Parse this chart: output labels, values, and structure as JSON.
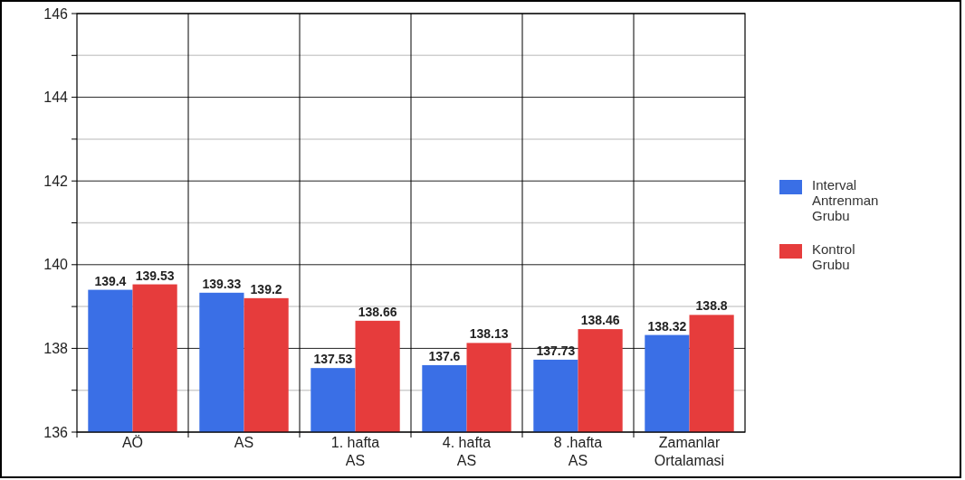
{
  "chart_data": {
    "type": "bar",
    "categories": [
      "AÖ",
      "AS",
      "1. hafta AS",
      "4. hafta AS",
      "8 .hafta AS",
      "Zamanlar Ortalamasi"
    ],
    "series": [
      {
        "name": "Interval Antrenman Grubu",
        "color": "#3a6fe6",
        "values": [
          139.4,
          139.33,
          137.53,
          137.6,
          137.73,
          138.32
        ],
        "value_labels": [
          "139.4",
          "139.33",
          "137.53",
          "137.6",
          "137.73",
          "138.32"
        ]
      },
      {
        "name": "Kontrol Grubu",
        "color": "#e63c3c",
        "values": [
          139.53,
          139.2,
          138.66,
          138.13,
          138.46,
          138.8
        ],
        "value_labels": [
          "139.53",
          "139.2",
          "138.66",
          "138.13",
          "138.46",
          "138.8"
        ]
      }
    ],
    "ylim": [
      136,
      146
    ],
    "yticks": [
      136,
      {
        "value": 137,
        "label": null
      },
      138,
      {
        "value": 139,
        "label": null
      },
      140,
      {
        "value": 141,
        "label": null
      },
      142,
      {
        "value": 143,
        "label": null
      },
      144,
      {
        "value": 145,
        "label": null
      },
      146
    ],
    "grid": true,
    "legend": "right"
  }
}
